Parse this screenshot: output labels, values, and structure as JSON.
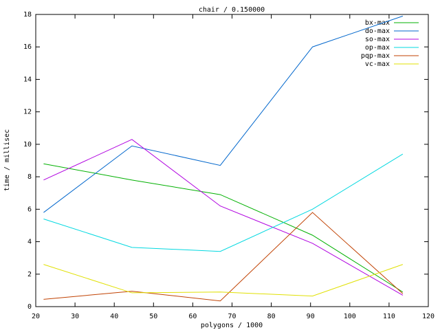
{
  "chart_data": {
    "type": "line",
    "title": "chair / 0.150000",
    "x_label": "polygons / 1000",
    "y_label": "time / millisec",
    "x": [
      22,
      44.5,
      67,
      90.5,
      113.5
    ],
    "series": [
      {
        "name": "bx-max",
        "color": "#00b000",
        "values": [
          8.8,
          7.8,
          6.9,
          4.4,
          0.9
        ]
      },
      {
        "name": "do-max",
        "color": "#0066cc",
        "values": [
          5.8,
          9.9,
          8.7,
          16.0,
          17.9
        ]
      },
      {
        "name": "so-max",
        "color": "#b000e0",
        "values": [
          7.8,
          10.3,
          6.2,
          3.9,
          0.7
        ]
      },
      {
        "name": "op-max",
        "color": "#00d8e0",
        "values": [
          5.4,
          3.65,
          3.4,
          6.0,
          9.4
        ]
      },
      {
        "name": "pqp-max",
        "color": "#c04000",
        "values": [
          0.45,
          0.95,
          0.35,
          5.8,
          0.8
        ]
      },
      {
        "name": "vc-max",
        "color": "#e0e000",
        "values": [
          2.6,
          0.85,
          0.9,
          0.65,
          2.6
        ]
      }
    ],
    "xlim": [
      20,
      120
    ],
    "xticks": [
      20,
      30,
      40,
      50,
      60,
      70,
      80,
      90,
      100,
      110,
      120
    ],
    "ylim": [
      0,
      18
    ],
    "yticks": [
      0,
      2,
      4,
      6,
      8,
      10,
      12,
      14,
      16,
      18
    ],
    "legend": "top-right",
    "grid": false
  }
}
